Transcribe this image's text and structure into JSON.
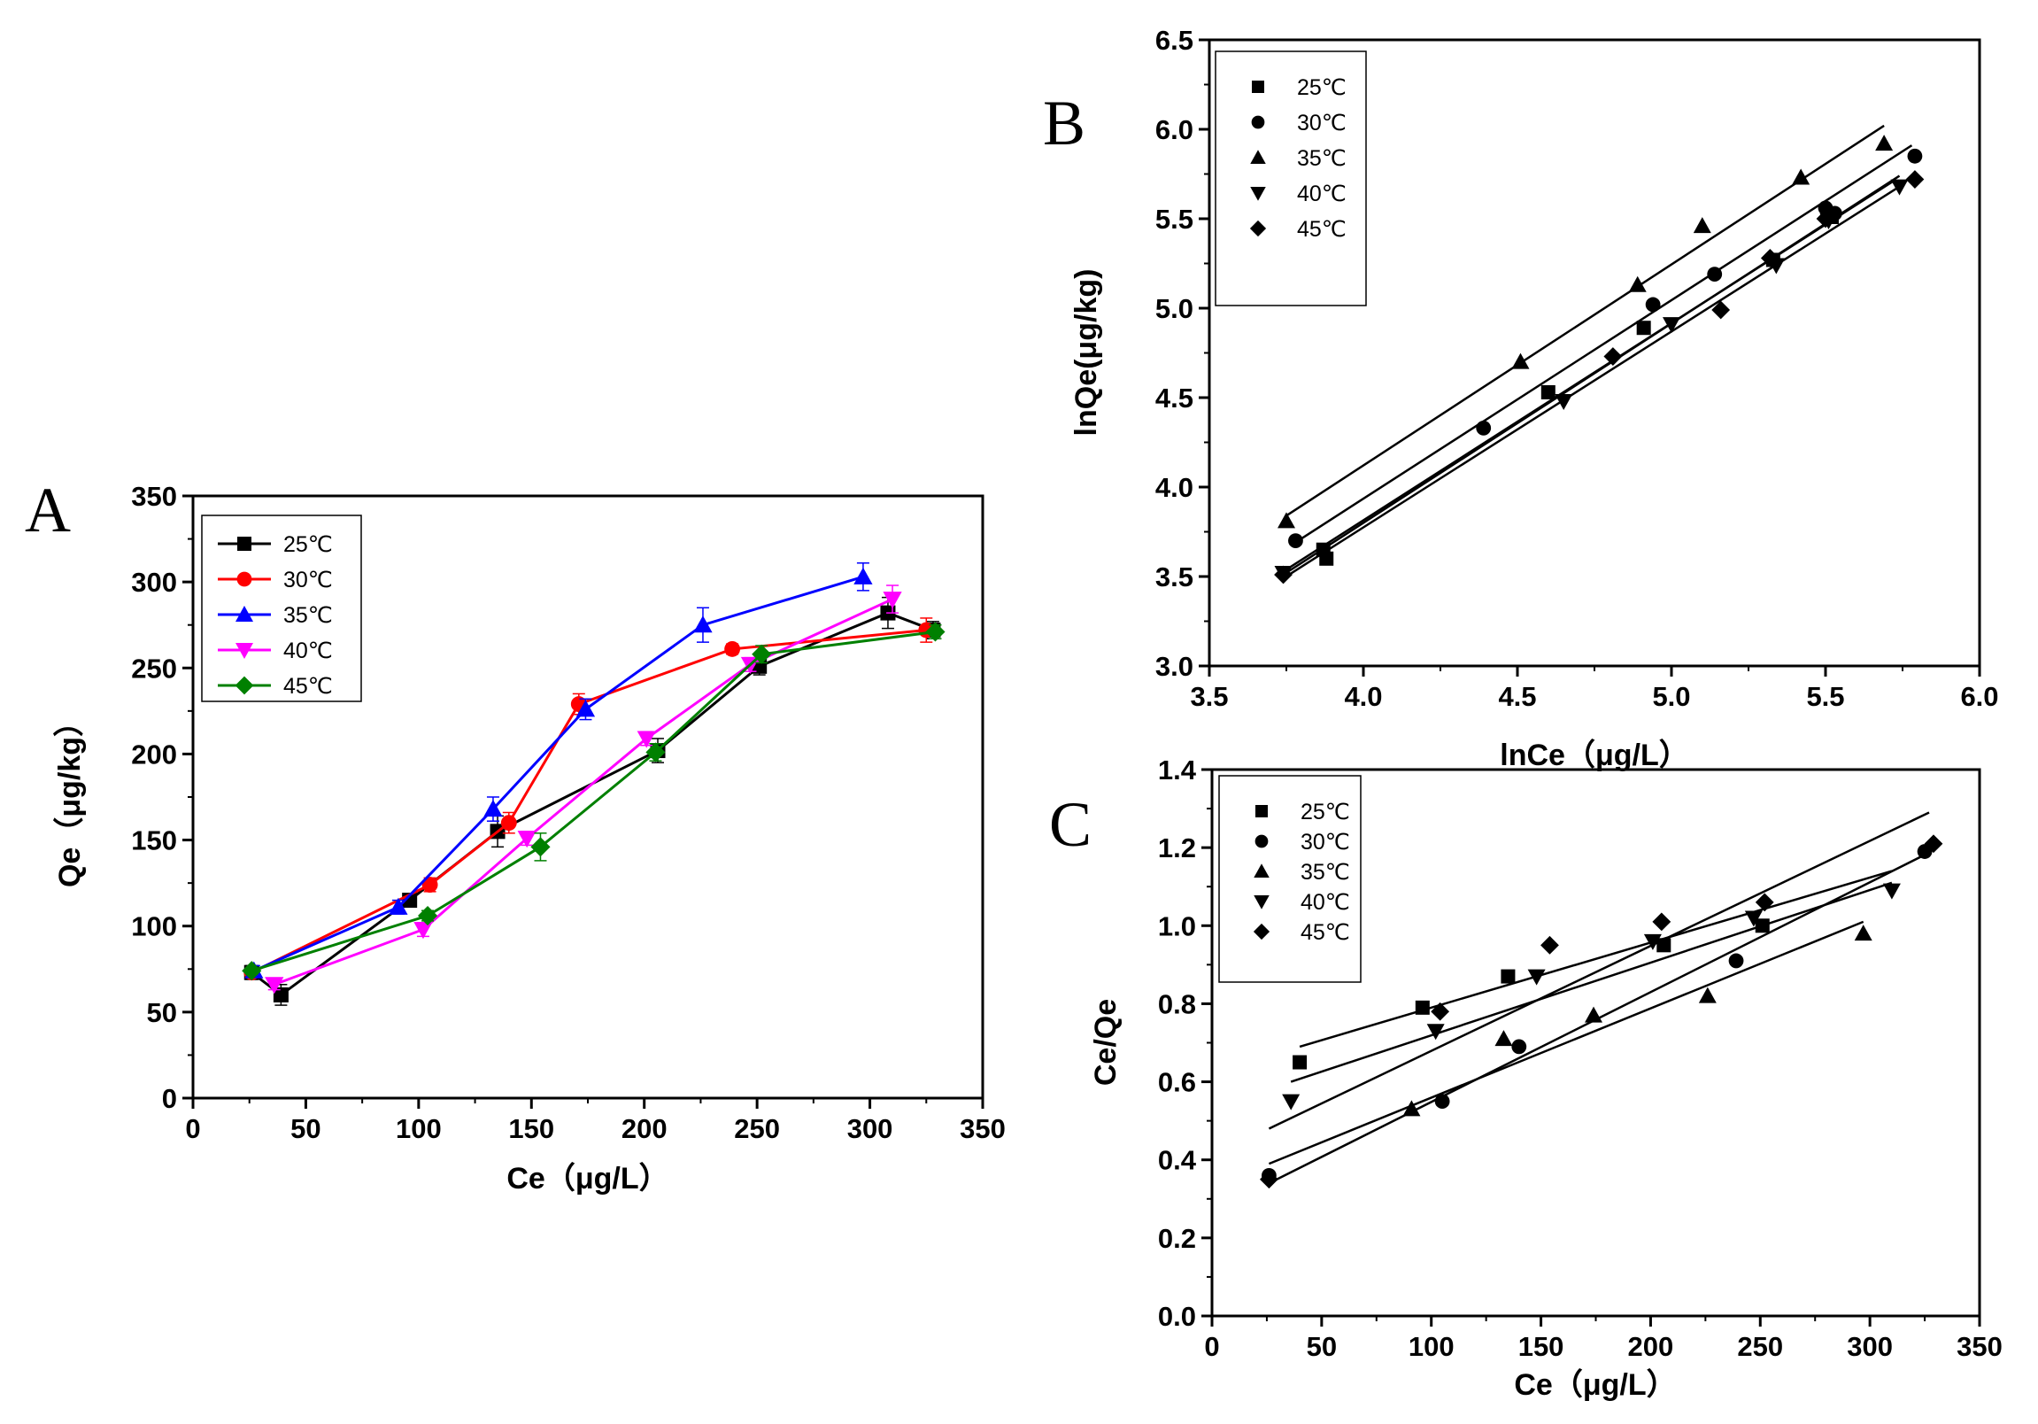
{
  "chart_data": [
    {
      "id": "A",
      "panel_label": "A",
      "type": "line",
      "title": "",
      "xlabel": "Ce（μg/L）",
      "ylabel": "Qe（μg/kg）",
      "xlim": [
        0,
        350
      ],
      "ylim": [
        0,
        350
      ],
      "xticks": [
        0,
        50,
        100,
        150,
        200,
        250,
        300,
        350
      ],
      "yticks": [
        0,
        50,
        100,
        150,
        200,
        250,
        300,
        350
      ],
      "error_bars": true,
      "legend_position": "top-left",
      "series": [
        {
          "name": "25℃",
          "color": "#000000",
          "marker": "square",
          "x": [
            26,
            39,
            96,
            135,
            206,
            251,
            308,
            328
          ],
          "y": [
            73,
            60,
            115,
            155,
            202,
            251,
            282,
            272
          ],
          "err": [
            4,
            6,
            3,
            9,
            7,
            5,
            9,
            5
          ]
        },
        {
          "name": "30℃",
          "color": "#ff0000",
          "marker": "circle",
          "x": [
            26,
            105,
            140,
            171,
            239,
            325
          ],
          "y": [
            73,
            124,
            160,
            229,
            261,
            272
          ],
          "err": [
            3,
            4,
            6,
            6,
            3,
            7
          ]
        },
        {
          "name": "35℃",
          "color": "#0000ff",
          "marker": "triangle-up",
          "x": [
            27,
            91,
            133,
            174,
            226,
            297
          ],
          "y": [
            74,
            111,
            168,
            226,
            275,
            303
          ],
          "err": [
            3,
            4,
            7,
            6,
            10,
            8
          ]
        },
        {
          "name": "40℃",
          "color": "#ff00ff",
          "marker": "triangle-down",
          "x": [
            36,
            102,
            148,
            201,
            247,
            310
          ],
          "y": [
            66,
            98,
            151,
            209,
            252,
            290
          ],
          "err": [
            3,
            4,
            4,
            4,
            4,
            8
          ]
        },
        {
          "name": "45℃",
          "color": "#008000",
          "marker": "diamond",
          "x": [
            26,
            104,
            154,
            205,
            252,
            329
          ],
          "y": [
            74,
            106,
            146,
            201,
            258,
            271
          ],
          "err": [
            2,
            3,
            8,
            5,
            5,
            4
          ]
        }
      ]
    },
    {
      "id": "B",
      "panel_label": "B",
      "type": "scatter",
      "title": "",
      "xlabel": "lnCe（μg/L）",
      "ylabel": "lnQe(μg/kg)",
      "xlim": [
        3.5,
        6.0
      ],
      "ylim": [
        3.0,
        6.5
      ],
      "xticks": [
        3.5,
        4.0,
        4.5,
        5.0,
        5.5,
        6.0
      ],
      "yticks": [
        3.0,
        3.5,
        4.0,
        4.5,
        5.0,
        5.5,
        6.0,
        6.5
      ],
      "legend_position": "top-left",
      "series": [
        {
          "name": "25℃",
          "color": "#000000",
          "marker": "square",
          "x": [
            3.87,
            3.88,
            4.6,
            4.91,
            5.33,
            5.52
          ],
          "y": [
            3.65,
            3.6,
            4.53,
            4.89,
            5.27,
            5.51
          ],
          "fit": {
            "x": [
              3.76,
              5.72
            ],
            "y": [
              3.55,
              5.71
            ]
          }
        },
        {
          "name": "30℃",
          "color": "#000000",
          "marker": "circle",
          "x": [
            3.78,
            4.39,
            4.94,
            5.14,
            5.5,
            5.53,
            5.79
          ],
          "y": [
            3.7,
            4.33,
            5.02,
            5.19,
            5.56,
            5.53,
            5.85
          ],
          "fit": {
            "x": [
              3.77,
              5.78
            ],
            "y": [
              3.68,
              5.91
            ]
          }
        },
        {
          "name": "35℃",
          "color": "#000000",
          "marker": "triangle-up",
          "x": [
            3.75,
            4.51,
            4.89,
            5.1,
            5.42,
            5.69
          ],
          "y": [
            3.81,
            4.7,
            5.13,
            5.46,
            5.73,
            5.92
          ],
          "fit": {
            "x": [
              3.75,
              5.69
            ],
            "y": [
              3.84,
              6.02
            ]
          }
        },
        {
          "name": "40℃",
          "color": "#000000",
          "marker": "triangle-down",
          "x": [
            3.74,
            4.65,
            5.0,
            5.34,
            5.51,
            5.74
          ],
          "y": [
            3.52,
            4.48,
            4.91,
            5.24,
            5.49,
            5.68
          ],
          "fit": {
            "x": [
              3.74,
              5.74
            ],
            "y": [
              3.51,
              5.74
            ]
          }
        },
        {
          "name": "45℃",
          "color": "#000000",
          "marker": "diamond",
          "x": [
            3.74,
            4.81,
            5.16,
            5.32,
            5.5,
            5.79
          ],
          "y": [
            3.51,
            4.73,
            4.99,
            5.28,
            5.5,
            5.72
          ],
          "fit": {
            "x": [
              3.74,
              5.74
            ],
            "y": [
              3.49,
              5.68
            ]
          }
        }
      ]
    },
    {
      "id": "C",
      "panel_label": "C",
      "type": "scatter",
      "title": "",
      "xlabel": "Ce（μg/L）",
      "ylabel": "Ce/Qe",
      "xlim": [
        0,
        350
      ],
      "ylim": [
        0.0,
        1.4
      ],
      "xticks": [
        0,
        50,
        100,
        150,
        200,
        250,
        300,
        350
      ],
      "yticks": [
        0.0,
        0.2,
        0.4,
        0.6,
        0.8,
        1.0,
        1.2,
        1.4
      ],
      "legend_position": "top-left",
      "series": [
        {
          "name": "25℃",
          "color": "#000000",
          "marker": "square",
          "x": [
            40,
            96,
            135,
            206,
            251
          ],
          "y": [
            0.65,
            0.79,
            0.87,
            0.95,
            1.0
          ],
          "fit": {
            "x": [
              40,
              310
            ],
            "y": [
              0.69,
              1.14
            ]
          }
        },
        {
          "name": "30℃",
          "color": "#000000",
          "marker": "circle",
          "x": [
            26,
            105,
            140,
            239,
            325
          ],
          "y": [
            0.36,
            0.55,
            0.69,
            0.91,
            1.19
          ],
          "fit": {
            "x": [
              26,
              328
            ],
            "y": [
              0.34,
              1.19
            ]
          }
        },
        {
          "name": "35℃",
          "color": "#000000",
          "marker": "triangle-up",
          "x": [
            91,
            133,
            174,
            226,
            297
          ],
          "y": [
            0.53,
            0.71,
            0.77,
            0.82,
            0.98
          ],
          "fit": {
            "x": [
              26,
              297
            ],
            "y": [
              0.39,
              1.01
            ]
          }
        },
        {
          "name": "40℃",
          "color": "#000000",
          "marker": "triangle-down",
          "x": [
            36,
            102,
            148,
            201,
            247,
            310
          ],
          "y": [
            0.55,
            0.73,
            0.87,
            0.96,
            1.02,
            1.09
          ],
          "fit": {
            "x": [
              36,
              310
            ],
            "y": [
              0.6,
              1.11
            ]
          }
        },
        {
          "name": "45℃",
          "color": "#000000",
          "marker": "diamond",
          "x": [
            26,
            104,
            154,
            205,
            252,
            329
          ],
          "y": [
            0.35,
            0.78,
            0.95,
            1.01,
            1.06,
            1.21
          ],
          "fit": {
            "x": [
              26,
              327
            ],
            "y": [
              0.48,
              1.29
            ]
          }
        }
      ]
    }
  ]
}
